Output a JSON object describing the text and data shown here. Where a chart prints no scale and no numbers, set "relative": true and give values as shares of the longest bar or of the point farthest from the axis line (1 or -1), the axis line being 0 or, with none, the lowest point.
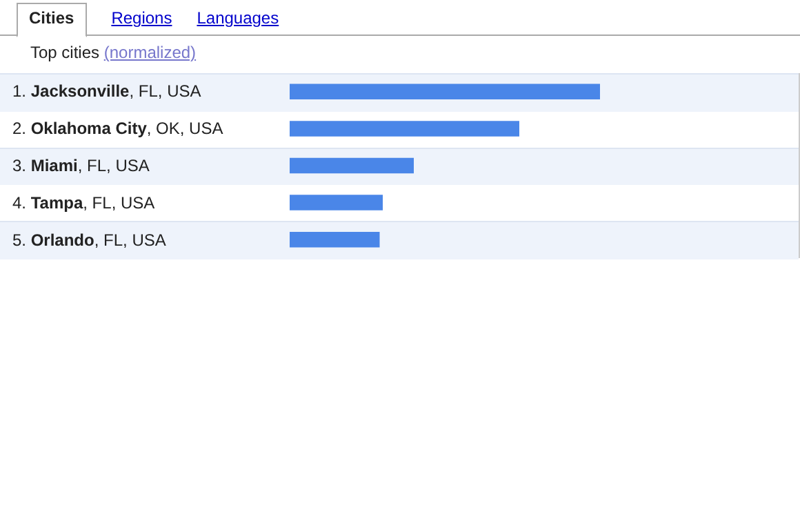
{
  "chart_data": {
    "type": "bar",
    "orientation": "horizontal",
    "relative": true,
    "title": "Top cities (normalized)",
    "categories": [
      "1. Jacksonville, FL, USA",
      "2. Oklahoma City, OK, USA",
      "3. Miami, FL, USA",
      "4. Tampa, FL, USA",
      "5. Orlando, FL, USA"
    ],
    "values": [
      1,
      0.74,
      0.4,
      0.3,
      0.29
    ],
    "color": "#4a86e8",
    "annotations": [
      "Cities",
      "Regions",
      "Languages"
    ]
  }
}
